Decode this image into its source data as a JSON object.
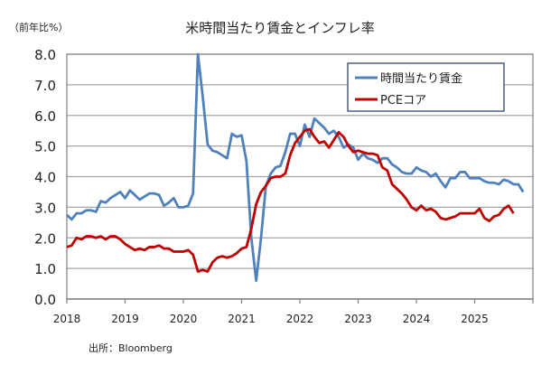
{
  "chart_data": {
    "type": "line",
    "title": "米時間当たり賃金とインフレ率",
    "ylabel": "（前年比%）",
    "source": "出所：Bloomberg",
    "ylim": [
      0,
      8
    ],
    "yticks": [
      "0.0",
      "1.0",
      "2.0",
      "3.0",
      "4.0",
      "5.0",
      "6.0",
      "7.0",
      "8.0"
    ],
    "xticks": [
      "2018",
      "2019",
      "2020",
      "2021",
      "2022",
      "2023",
      "2024",
      "2025"
    ],
    "x_start": "2018-01",
    "x_end": "2026-01",
    "frequency": "monthly",
    "grid": true,
    "legend": "top-right",
    "series": [
      {
        "name": "時間当たり賃金",
        "color": "#4F81BD",
        "start": "2018-01",
        "values": [
          2.75,
          2.6,
          2.8,
          2.8,
          2.9,
          2.9,
          2.85,
          3.2,
          3.15,
          3.3,
          3.4,
          3.5,
          3.3,
          3.55,
          3.4,
          3.25,
          3.35,
          3.45,
          3.45,
          3.4,
          3.05,
          3.15,
          3.3,
          3.0,
          3.0,
          3.05,
          3.45,
          8.0,
          6.6,
          5.05,
          4.85,
          4.8,
          4.7,
          4.6,
          5.4,
          5.3,
          5.35,
          4.5,
          2.0,
          0.6,
          2.0,
          3.7,
          4.1,
          4.3,
          4.35,
          4.8,
          5.4,
          5.4,
          5.0,
          5.7,
          5.3,
          5.9,
          5.75,
          5.6,
          5.4,
          5.5,
          5.3,
          4.95,
          5.05,
          4.95,
          4.55,
          4.75,
          4.6,
          4.55,
          4.45,
          4.6,
          4.6,
          4.4,
          4.3,
          4.15,
          4.1,
          4.1,
          4.3,
          4.2,
          4.15,
          4.0,
          4.1,
          3.85,
          3.65,
          3.95,
          3.95,
          4.15,
          4.15,
          3.95,
          3.95,
          3.95,
          3.85,
          3.8,
          3.8,
          3.75,
          3.9,
          3.85,
          3.75,
          3.75,
          3.5
        ]
      },
      {
        "name": "PCEコア",
        "color": "#C00000",
        "start": "2018-01",
        "values": [
          1.7,
          1.75,
          2.0,
          1.95,
          2.05,
          2.05,
          2.0,
          2.05,
          1.95,
          2.05,
          2.05,
          1.95,
          1.8,
          1.7,
          1.6,
          1.65,
          1.6,
          1.7,
          1.7,
          1.75,
          1.65,
          1.65,
          1.55,
          1.55,
          1.55,
          1.6,
          1.45,
          0.9,
          0.95,
          0.9,
          1.2,
          1.35,
          1.4,
          1.35,
          1.4,
          1.5,
          1.65,
          1.7,
          2.3,
          3.1,
          3.5,
          3.7,
          3.95,
          4.0,
          4.0,
          4.1,
          4.7,
          5.1,
          5.3,
          5.5,
          5.55,
          5.3,
          5.1,
          5.15,
          4.95,
          5.2,
          5.45,
          5.3,
          5.0,
          4.8,
          4.85,
          4.8,
          4.75,
          4.75,
          4.7,
          4.3,
          4.2,
          3.75,
          3.6,
          3.45,
          3.25,
          3.0,
          2.9,
          3.05,
          2.9,
          2.95,
          2.85,
          2.65,
          2.6,
          2.65,
          2.7,
          2.8,
          2.8,
          2.8,
          2.8,
          2.95,
          2.65,
          2.55,
          2.7,
          2.75,
          2.95,
          3.05,
          2.8
        ]
      }
    ]
  }
}
